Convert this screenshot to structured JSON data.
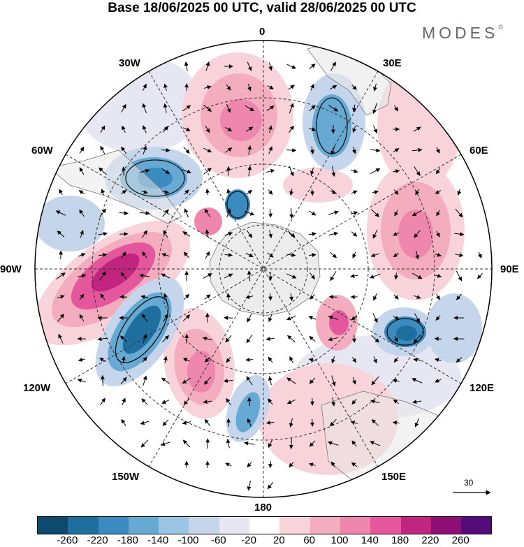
{
  "title": "Base 18/06/2025 00 UTC, valid 28/06/2025 00 UTC",
  "brand": "MODES",
  "brand_mark": "©",
  "map": {
    "projection": "polar-stereographic-south",
    "longitude_labels": {
      "top": "0",
      "top_right": "30E",
      "right_upper": "60E",
      "right": "90E",
      "right_lower": "120E",
      "bottom_right": "150E",
      "bottom": "180",
      "bottom_left": "150W",
      "left_lower": "120W",
      "left": "90W",
      "left_upper": "60W",
      "top_left": "30W"
    },
    "vector_reference_label": "30",
    "field": "anomaly with wind vectors",
    "positive_centers": [
      "southern Atlantic (south of Africa)",
      "Indian Ocean near 60E–75E",
      "west of South America near 90W–100W",
      "Pacific near 150W",
      "south of Australia near 110E"
    ],
    "negative_centers": [
      "near 30E",
      "near 50W–60W",
      "near 110W–130W",
      "near 100E–115E",
      "near 170W"
    ]
  },
  "colorbar": {
    "colors": [
      "#0d4a6e",
      "#1f6f9e",
      "#3a8cc0",
      "#66a9d3",
      "#9cc4e3",
      "#c5d6ec",
      "#e6e7f2",
      "#ffffff",
      "#f8d3d9",
      "#f4adbe",
      "#ee86ad",
      "#e4579c",
      "#c2257f",
      "#8d0e74",
      "#560b7a"
    ],
    "ticks": [
      "-260",
      "-220",
      "-180",
      "-140",
      "-100",
      "-60",
      "-20",
      "20",
      "60",
      "100",
      "140",
      "180",
      "220",
      "260"
    ]
  }
}
